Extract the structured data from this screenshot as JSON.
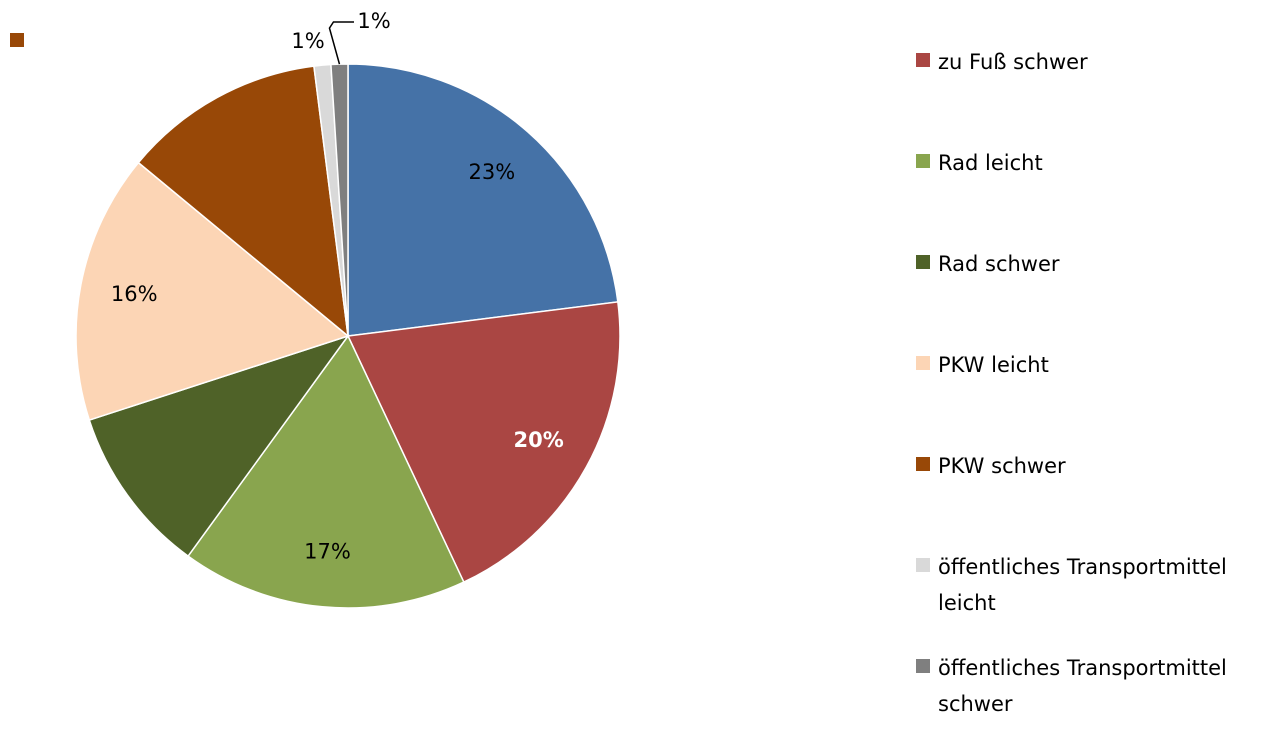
{
  "chart_data": {
    "type": "pie",
    "categories": [
      null,
      "zu Fuß schwer",
      "Rad leicht",
      "Rad schwer",
      "PKW leicht",
      "PKW schwer",
      "öffentliches Transportmittel leicht",
      "öffentliches Transportmittel schwer"
    ],
    "values": [
      23,
      20,
      17,
      10,
      16,
      12,
      1,
      1
    ],
    "value_labels": [
      "23%",
      "20%",
      "17%",
      null,
      "16%",
      null,
      "1%",
      "1%"
    ],
    "colors": [
      "#4572a7",
      "#aa4643",
      "#89a54e",
      "#4f6228",
      "#fcd5b5",
      "#984807",
      "#d9d9d9",
      "#7f7f7f"
    ],
    "legend": "right"
  }
}
